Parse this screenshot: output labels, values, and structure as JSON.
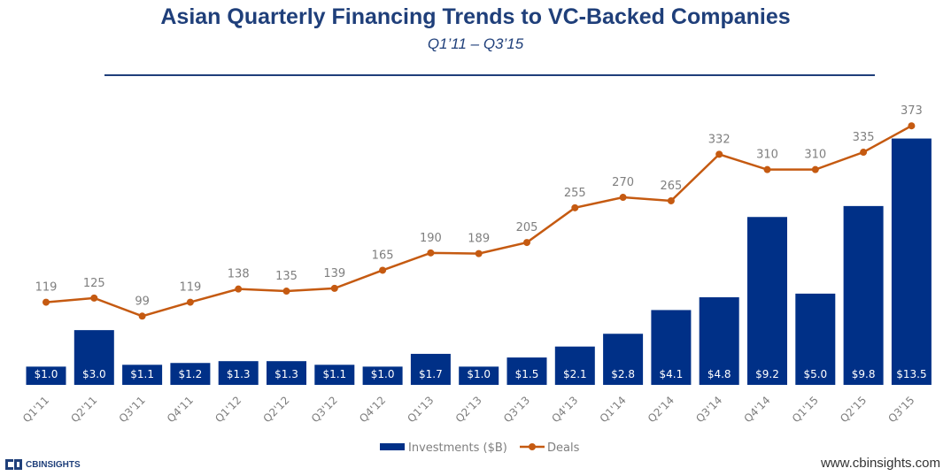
{
  "title": "Asian Quarterly Financing Trends to VC-Backed Companies",
  "subtitle": "Q1’11 – Q3’15",
  "footer": {
    "brand": "CBINSIGHTS",
    "url": "www.cbinsights.com"
  },
  "colors": {
    "title": "#1f3f7a",
    "bars": "#003087",
    "line": "#c55a11",
    "deal_label": "#7f7f7f"
  },
  "chart_data": {
    "type": "bar+line",
    "title": "Asian Quarterly Financing Trends to VC-Backed Companies",
    "subtitle": "Q1’11 – Q3’15",
    "categories": [
      "Q1'11",
      "Q2'11",
      "Q3'11",
      "Q4'11",
      "Q1'12",
      "Q2'12",
      "Q3'12",
      "Q4'12",
      "Q1'13",
      "Q2'13",
      "Q3'13",
      "Q4'13",
      "Q1'14",
      "Q2'14",
      "Q3'14",
      "Q4'14",
      "Q1'15",
      "Q2'15",
      "Q3'15"
    ],
    "series": [
      {
        "name": "Investments ($B)",
        "type": "bar",
        "values": [
          1.0,
          3.0,
          1.1,
          1.2,
          1.3,
          1.3,
          1.1,
          1.0,
          1.7,
          1.0,
          1.5,
          2.1,
          2.8,
          4.1,
          4.8,
          9.2,
          5.0,
          9.8,
          13.5
        ],
        "labels": [
          "$1.0",
          "$3.0",
          "$1.1",
          "$1.2",
          "$1.3",
          "$1.3",
          "$1.1",
          "$1.0",
          "$1.7",
          "$1.0",
          "$1.5",
          "$2.1",
          "$2.8",
          "$4.1",
          "$4.8",
          "$9.2",
          "$5.0",
          "$9.8",
          "$13.5"
        ]
      },
      {
        "name": "Deals",
        "type": "line",
        "values": [
          119,
          125,
          99,
          119,
          138,
          135,
          139,
          165,
          190,
          189,
          205,
          255,
          270,
          265,
          332,
          310,
          310,
          335,
          373
        ],
        "labels": [
          "119",
          "125",
          "99",
          "119",
          "138",
          "135",
          "139",
          "165",
          "190",
          "189",
          "205",
          "255",
          "270",
          "265",
          "332",
          "310",
          "310",
          "335",
          "373"
        ]
      }
    ],
    "legend": {
      "position": "bottom",
      "entries": [
        "Investments ($B)",
        "Deals"
      ]
    },
    "bar_ylim": [
      0,
      14.4
    ],
    "line_ylim": [
      0,
      400
    ],
    "grid": false
  }
}
